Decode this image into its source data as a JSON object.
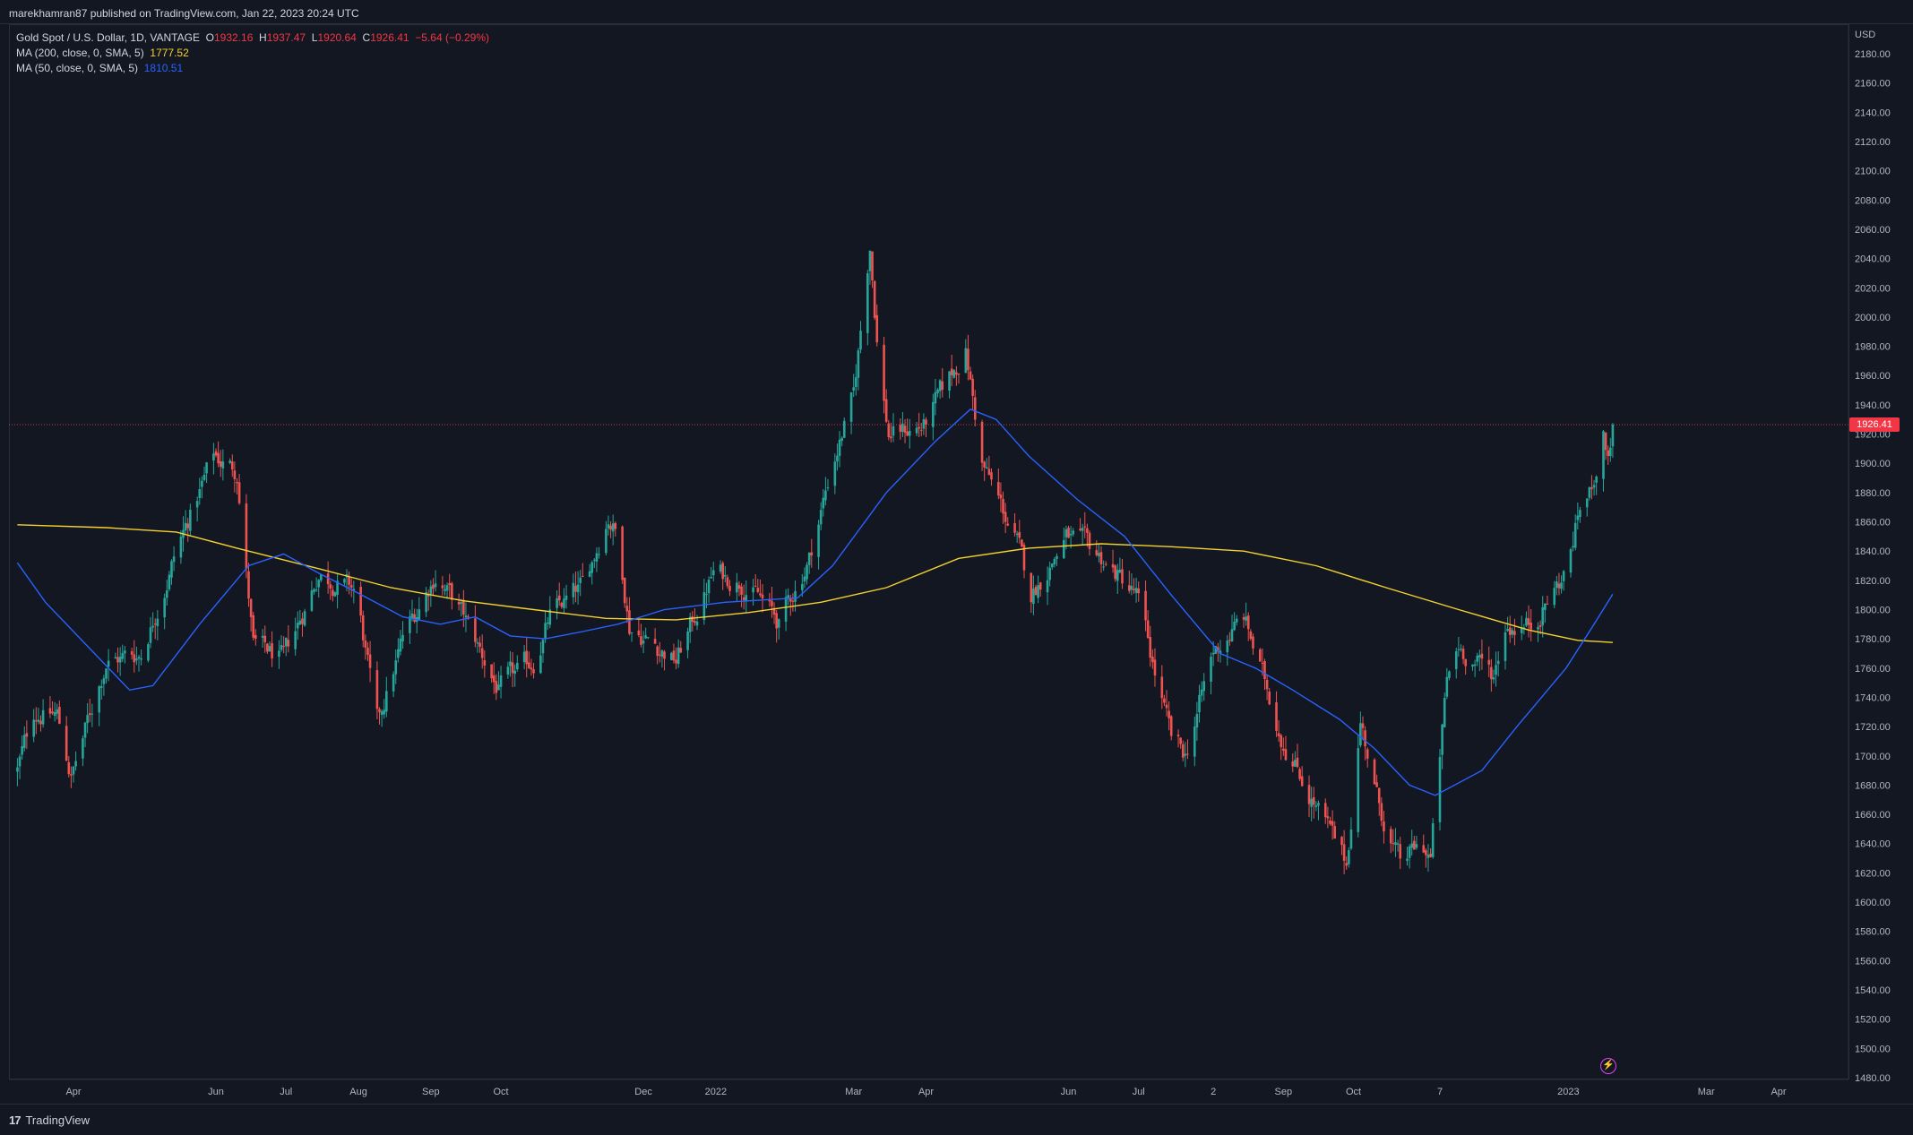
{
  "header": {
    "publish_text": "marekhamran87 published on TradingView.com, Jan 22, 2023 20:24 UTC"
  },
  "legend": {
    "symbol": "Gold Spot / U.S. Dollar, 1D, VANTAGE",
    "open_label": "O",
    "open": "1932.16",
    "high_label": "H",
    "high": "1937.47",
    "low_label": "L",
    "low": "1920.64",
    "close_label": "C",
    "close": "1926.41",
    "change": "−5.64 (−0.29%)",
    "ma200_label": "MA (200, close, 0, SMA, 5)",
    "ma200_value": "1777.52",
    "ma50_label": "MA (50, close, 0, SMA, 5)",
    "ma50_value": "1810.51"
  },
  "axis": {
    "currency": "USD",
    "last_price_tag": "1926.41"
  },
  "footer": {
    "brand": "TradingView",
    "brand_icon": "tradingview-logo-icon"
  },
  "colors": {
    "up": "#26a69a",
    "down": "#ef5350",
    "ma200": "#f5d22f",
    "ma50": "#2962ff",
    "background": "#131722"
  },
  "chart_data": {
    "type": "candlestick",
    "ylim": [
      1480,
      2180
    ],
    "y_ticks": [
      "2180.00",
      "2160.00",
      "2140.00",
      "2120.00",
      "2100.00",
      "2080.00",
      "2060.00",
      "2040.00",
      "2020.00",
      "2000.00",
      "1980.00",
      "1960.00",
      "1940.00",
      "1920.00",
      "1900.00",
      "1880.00",
      "1860.00",
      "1840.00",
      "1820.00",
      "1800.00",
      "1780.00",
      "1760.00",
      "1740.00",
      "1720.00",
      "1700.00",
      "1680.00",
      "1660.00",
      "1640.00",
      "1620.00",
      "1600.00",
      "1580.00",
      "1560.00",
      "1540.00",
      "1520.00",
      "1500.00",
      "1480.00"
    ],
    "x_ticks": [
      {
        "label": "Apr",
        "date": "2021-04-01"
      },
      {
        "label": "Jun",
        "date": "2021-06-01"
      },
      {
        "label": "Jul",
        "date": "2021-07-01"
      },
      {
        "label": "Aug",
        "date": "2021-08-01"
      },
      {
        "label": "Sep",
        "date": "2021-09-01"
      },
      {
        "label": "Oct",
        "date": "2021-10-01"
      },
      {
        "label": "Dec",
        "date": "2021-12-01"
      },
      {
        "label": "2022",
        "date": "2022-01-01"
      },
      {
        "label": "Mar",
        "date": "2022-03-01"
      },
      {
        "label": "Apr",
        "date": "2022-04-01"
      },
      {
        "label": "Jun",
        "date": "2022-06-01"
      },
      {
        "label": "Jul",
        "date": "2022-07-01"
      },
      {
        "label": "2",
        "date": "2022-08-02"
      },
      {
        "label": "Sep",
        "date": "2022-09-01"
      },
      {
        "label": "Oct",
        "date": "2022-10-01"
      },
      {
        "label": "7",
        "date": "2022-11-07"
      },
      {
        "label": "2023",
        "date": "2023-01-01"
      },
      {
        "label": "Mar",
        "date": "2023-03-01"
      },
      {
        "label": "Apr",
        "date": "2023-04-01"
      }
    ],
    "price_anchors": [
      [
        "2021-03-08",
        1690
      ],
      [
        "2021-03-15",
        1730
      ],
      [
        "2021-03-25",
        1728
      ],
      [
        "2021-03-31",
        1685
      ],
      [
        "2021-04-15",
        1765
      ],
      [
        "2021-04-30",
        1770
      ],
      [
        "2021-05-15",
        1840
      ],
      [
        "2021-05-31",
        1905
      ],
      [
        "2021-06-10",
        1895
      ],
      [
        "2021-06-17",
        1775
      ],
      [
        "2021-06-30",
        1765
      ],
      [
        "2021-07-15",
        1825
      ],
      [
        "2021-07-31",
        1812
      ],
      [
        "2021-08-09",
        1720
      ],
      [
        "2021-08-20",
        1780
      ],
      [
        "2021-08-31",
        1815
      ],
      [
        "2021-09-03",
        1825
      ],
      [
        "2021-09-15",
        1795
      ],
      [
        "2021-09-30",
        1745
      ],
      [
        "2021-10-15",
        1765
      ],
      [
        "2021-10-22",
        1795
      ],
      [
        "2021-11-05",
        1815
      ],
      [
        "2021-11-16",
        1865
      ],
      [
        "2021-11-20",
        1850
      ],
      [
        "2021-11-25",
        1790
      ],
      [
        "2021-12-15",
        1765
      ],
      [
        "2021-12-31",
        1825
      ],
      [
        "2022-01-15",
        1818
      ],
      [
        "2022-01-28",
        1790
      ],
      [
        "2022-02-10",
        1835
      ],
      [
        "2022-02-20",
        1900
      ],
      [
        "2022-03-01",
        1945
      ],
      [
        "2022-03-08",
        2050
      ],
      [
        "2022-03-12",
        1965
      ],
      [
        "2022-03-16",
        1920
      ],
      [
        "2022-03-31",
        1925
      ],
      [
        "2022-04-18",
        1978
      ],
      [
        "2022-04-25",
        1900
      ],
      [
        "2022-05-10",
        1845
      ],
      [
        "2022-05-16",
        1810
      ],
      [
        "2022-05-31",
        1850
      ],
      [
        "2022-06-15",
        1835
      ],
      [
        "2022-06-30",
        1810
      ],
      [
        "2022-07-15",
        1710
      ],
      [
        "2022-07-21",
        1700
      ],
      [
        "2022-08-02",
        1770
      ],
      [
        "2022-08-15",
        1795
      ],
      [
        "2022-08-31",
        1715
      ],
      [
        "2022-09-15",
        1665
      ],
      [
        "2022-09-28",
        1625
      ],
      [
        "2022-10-04",
        1725
      ],
      [
        "2022-10-12",
        1665
      ],
      [
        "2022-10-21",
        1625
      ],
      [
        "2022-10-30",
        1640
      ],
      [
        "2022-11-03",
        1630
      ],
      [
        "2022-11-10",
        1750
      ],
      [
        "2022-11-15",
        1775
      ],
      [
        "2022-11-30",
        1755
      ],
      [
        "2022-12-05",
        1790
      ],
      [
        "2022-12-16",
        1790
      ],
      [
        "2022-12-31",
        1825
      ],
      [
        "2023-01-06",
        1870
      ],
      [
        "2023-01-10",
        1878
      ],
      [
        "2023-01-16",
        1920
      ],
      [
        "2023-01-18",
        1905
      ],
      [
        "2023-01-20",
        1926
      ]
    ],
    "ma200_points": [
      [
        "2021-03-08",
        1858
      ],
      [
        "2021-04-15",
        1856
      ],
      [
        "2021-05-15",
        1853
      ],
      [
        "2021-06-10",
        1842
      ],
      [
        "2021-07-15",
        1828
      ],
      [
        "2021-08-15",
        1815
      ],
      [
        "2021-09-15",
        1806
      ],
      [
        "2021-10-15",
        1800
      ],
      [
        "2021-11-15",
        1794
      ],
      [
        "2021-12-15",
        1793
      ],
      [
        "2022-01-15",
        1798
      ],
      [
        "2022-02-15",
        1805
      ],
      [
        "2022-03-15",
        1815
      ],
      [
        "2022-04-15",
        1835
      ],
      [
        "2022-05-15",
        1842
      ],
      [
        "2022-06-15",
        1845
      ],
      [
        "2022-07-15",
        1843
      ],
      [
        "2022-08-15",
        1840
      ],
      [
        "2022-09-15",
        1830
      ],
      [
        "2022-10-15",
        1815
      ],
      [
        "2022-11-15",
        1800
      ],
      [
        "2022-12-15",
        1786
      ],
      [
        "2023-01-05",
        1779
      ],
      [
        "2023-01-20",
        1777.52
      ]
    ],
    "ma50_points": [
      [
        "2021-03-08",
        1832
      ],
      [
        "2021-03-20",
        1805
      ],
      [
        "2021-04-10",
        1770
      ],
      [
        "2021-04-25",
        1745
      ],
      [
        "2021-05-05",
        1748
      ],
      [
        "2021-05-25",
        1790
      ],
      [
        "2021-06-15",
        1830
      ],
      [
        "2021-06-30",
        1838
      ],
      [
        "2021-07-15",
        1825
      ],
      [
        "2021-07-31",
        1812
      ],
      [
        "2021-08-20",
        1795
      ],
      [
        "2021-09-05",
        1790
      ],
      [
        "2021-09-20",
        1795
      ],
      [
        "2021-10-05",
        1782
      ],
      [
        "2021-10-20",
        1780
      ],
      [
        "2021-11-05",
        1785
      ],
      [
        "2021-11-20",
        1790
      ],
      [
        "2021-12-10",
        1800
      ],
      [
        "2022-01-05",
        1805
      ],
      [
        "2022-02-05",
        1808
      ],
      [
        "2022-02-20",
        1830
      ],
      [
        "2022-03-15",
        1880
      ],
      [
        "2022-04-05",
        1915
      ],
      [
        "2022-04-20",
        1937
      ],
      [
        "2022-05-01",
        1930
      ],
      [
        "2022-05-15",
        1905
      ],
      [
        "2022-06-05",
        1875
      ],
      [
        "2022-06-25",
        1850
      ],
      [
        "2022-07-15",
        1810
      ],
      [
        "2022-08-05",
        1770
      ],
      [
        "2022-08-20",
        1760
      ],
      [
        "2022-09-05",
        1745
      ],
      [
        "2022-09-25",
        1725
      ],
      [
        "2022-10-10",
        1705
      ],
      [
        "2022-10-25",
        1680
      ],
      [
        "2022-11-05",
        1673
      ],
      [
        "2022-11-25",
        1690
      ],
      [
        "2022-12-10",
        1720
      ],
      [
        "2022-12-31",
        1760
      ],
      [
        "2023-01-12",
        1790
      ],
      [
        "2023-01-20",
        1810.51
      ]
    ],
    "last_price": 1926.41
  }
}
